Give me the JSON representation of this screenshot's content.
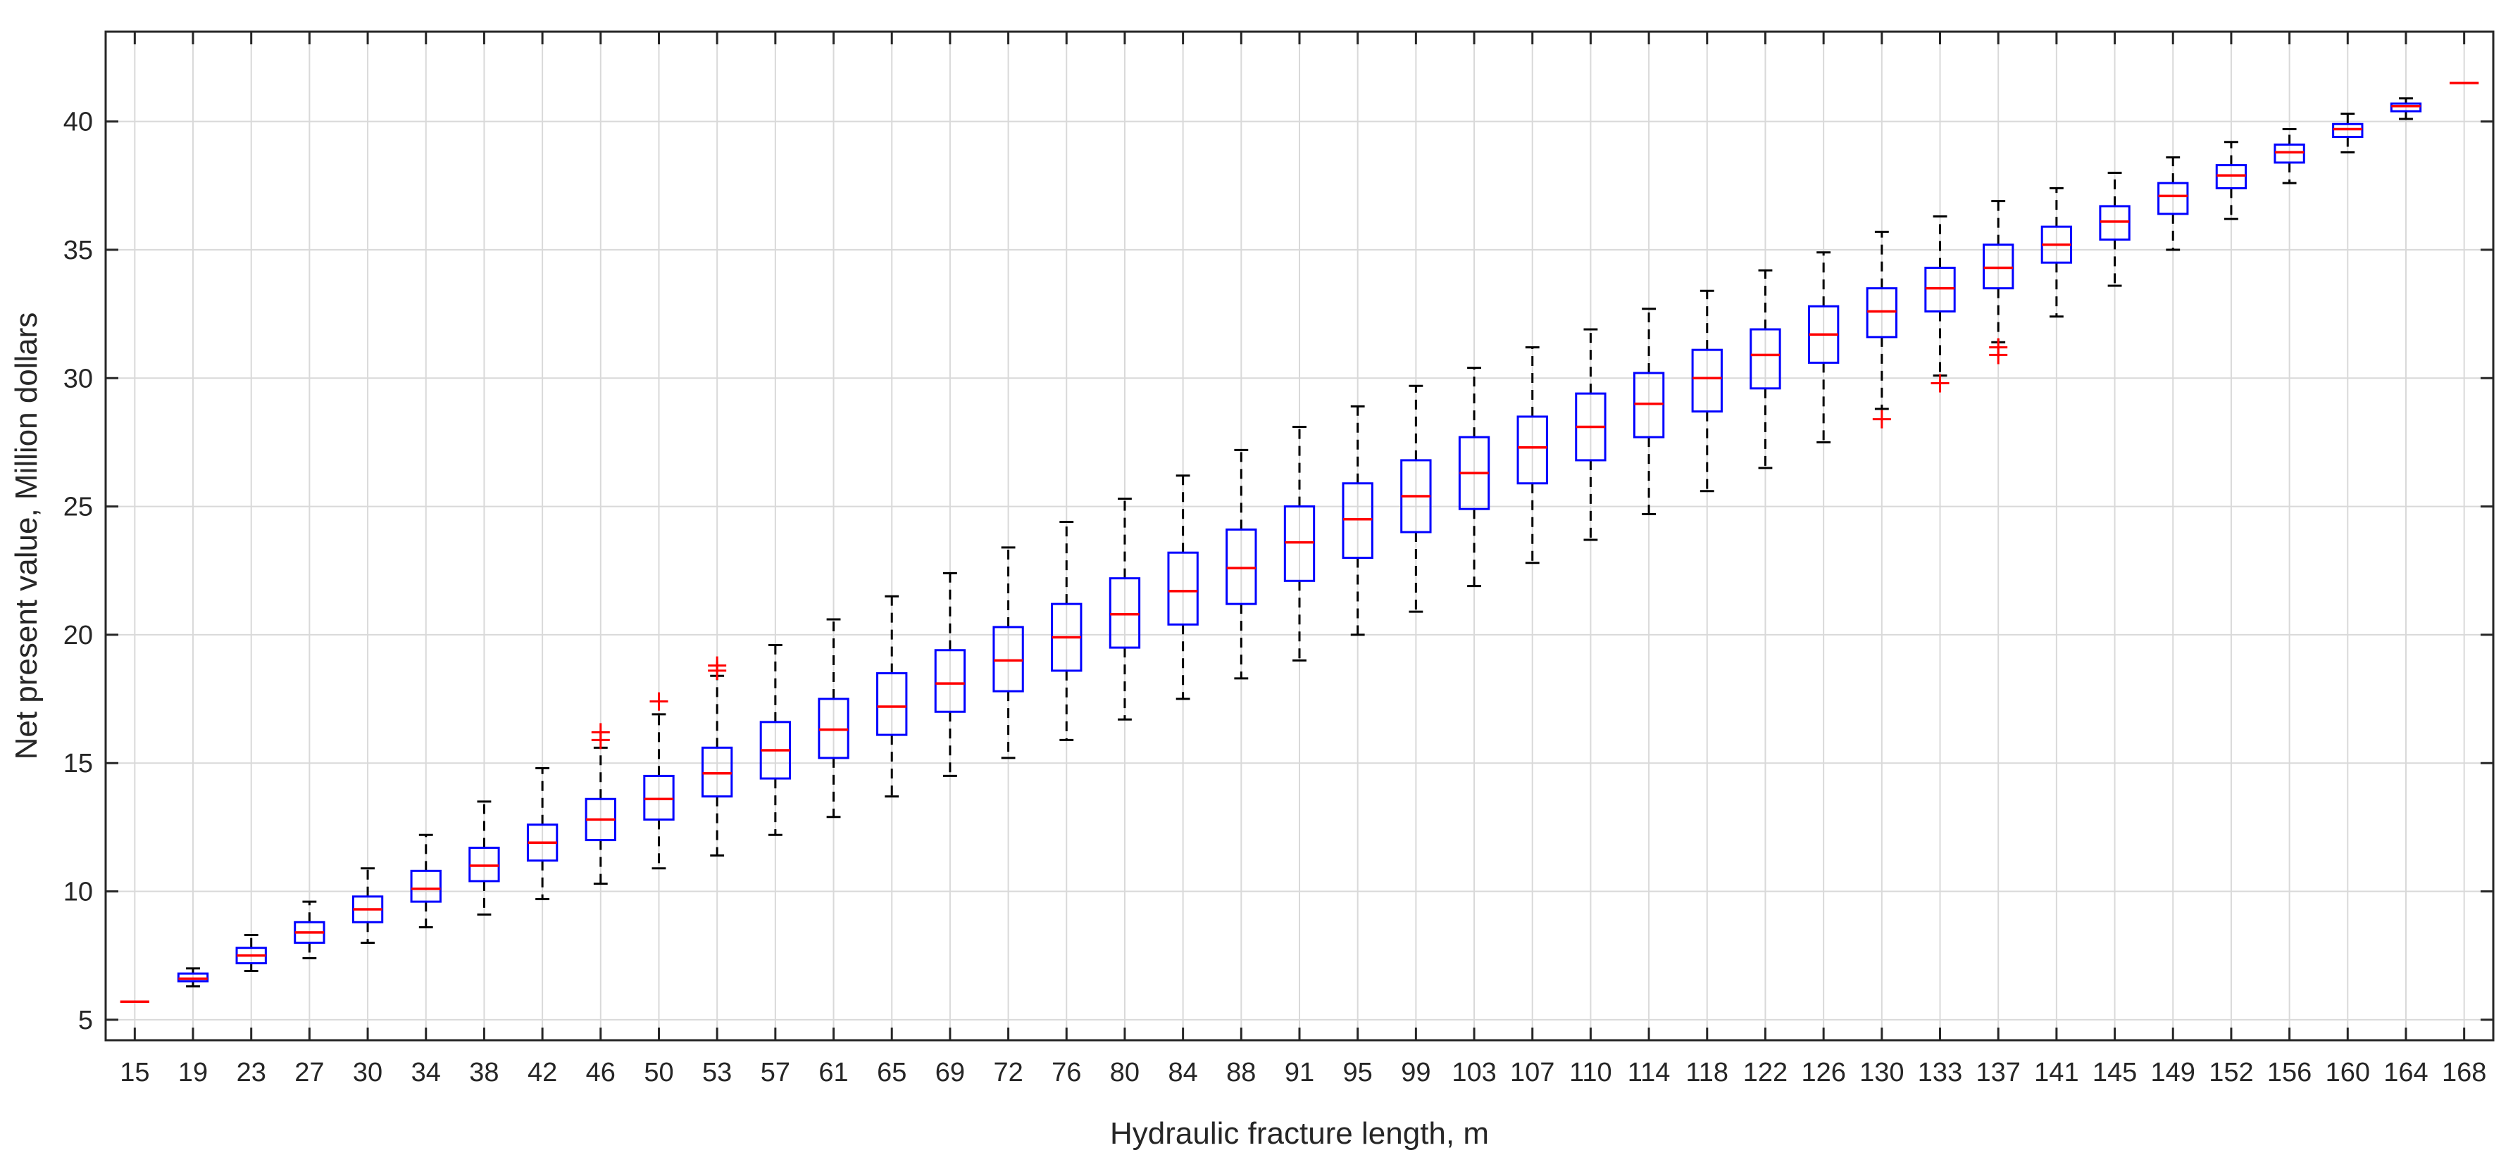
{
  "chart_data": {
    "type": "box",
    "xlabel": "Hydraulic fracture length, m",
    "ylabel": "Net present value, Million dollars",
    "ylim": [
      4.2,
      43.5
    ],
    "yticks": [
      5,
      10,
      15,
      20,
      25,
      30,
      35,
      40
    ],
    "grid": true,
    "colors": {
      "box": "#0000ff",
      "median": "#ff0000",
      "whisker": "#000000",
      "outlier": "#ff0000",
      "grid": "#d9d9d9",
      "axis": "#262626"
    },
    "categories": [
      "15",
      "19",
      "23",
      "27",
      "30",
      "34",
      "38",
      "42",
      "46",
      "50",
      "53",
      "57",
      "61",
      "65",
      "69",
      "72",
      "76",
      "80",
      "84",
      "88",
      "91",
      "95",
      "99",
      "103",
      "107",
      "110",
      "114",
      "118",
      "122",
      "126",
      "130",
      "133",
      "137",
      "141",
      "145",
      "149",
      "152",
      "156",
      "160",
      "164",
      "168"
    ],
    "boxes": [
      {
        "min": 5.7,
        "q1": 5.7,
        "median": 5.7,
        "q3": 5.7,
        "max": 5.7,
        "outliers": []
      },
      {
        "min": 6.3,
        "q1": 6.5,
        "median": 6.6,
        "q3": 6.8,
        "max": 7.0,
        "outliers": []
      },
      {
        "min": 6.9,
        "q1": 7.2,
        "median": 7.5,
        "q3": 7.8,
        "max": 8.3,
        "outliers": []
      },
      {
        "min": 7.4,
        "q1": 8.0,
        "median": 8.4,
        "q3": 8.8,
        "max": 9.6,
        "outliers": []
      },
      {
        "min": 8.0,
        "q1": 8.8,
        "median": 9.3,
        "q3": 9.8,
        "max": 10.9,
        "outliers": []
      },
      {
        "min": 8.6,
        "q1": 9.6,
        "median": 10.1,
        "q3": 10.8,
        "max": 12.2,
        "outliers": []
      },
      {
        "min": 9.1,
        "q1": 10.4,
        "median": 11.0,
        "q3": 11.7,
        "max": 13.5,
        "outliers": []
      },
      {
        "min": 9.7,
        "q1": 11.2,
        "median": 11.9,
        "q3": 12.6,
        "max": 14.8,
        "outliers": []
      },
      {
        "min": 10.3,
        "q1": 12.0,
        "median": 12.8,
        "q3": 13.6,
        "max": 15.6,
        "outliers": [
          15.9,
          16.2
        ]
      },
      {
        "min": 10.9,
        "q1": 12.8,
        "median": 13.6,
        "q3": 14.5,
        "max": 16.9,
        "outliers": [
          17.4
        ]
      },
      {
        "min": 11.4,
        "q1": 13.7,
        "median": 14.6,
        "q3": 15.6,
        "max": 18.4,
        "outliers": [
          18.6,
          18.8
        ]
      },
      {
        "min": 12.2,
        "q1": 14.4,
        "median": 15.5,
        "q3": 16.6,
        "max": 19.6,
        "outliers": []
      },
      {
        "min": 12.9,
        "q1": 15.2,
        "median": 16.3,
        "q3": 17.5,
        "max": 20.6,
        "outliers": []
      },
      {
        "min": 13.7,
        "q1": 16.1,
        "median": 17.2,
        "q3": 18.5,
        "max": 21.5,
        "outliers": []
      },
      {
        "min": 14.5,
        "q1": 17.0,
        "median": 18.1,
        "q3": 19.4,
        "max": 22.4,
        "outliers": []
      },
      {
        "min": 15.2,
        "q1": 17.8,
        "median": 19.0,
        "q3": 20.3,
        "max": 23.4,
        "outliers": []
      },
      {
        "min": 15.9,
        "q1": 18.6,
        "median": 19.9,
        "q3": 21.2,
        "max": 24.4,
        "outliers": []
      },
      {
        "min": 16.7,
        "q1": 19.5,
        "median": 20.8,
        "q3": 22.2,
        "max": 25.3,
        "outliers": []
      },
      {
        "min": 17.5,
        "q1": 20.4,
        "median": 21.7,
        "q3": 23.2,
        "max": 26.2,
        "outliers": []
      },
      {
        "min": 18.3,
        "q1": 21.2,
        "median": 22.6,
        "q3": 24.1,
        "max": 27.2,
        "outliers": []
      },
      {
        "min": 19.0,
        "q1": 22.1,
        "median": 23.6,
        "q3": 25.0,
        "max": 28.1,
        "outliers": []
      },
      {
        "min": 20.0,
        "q1": 23.0,
        "median": 24.5,
        "q3": 25.9,
        "max": 28.9,
        "outliers": []
      },
      {
        "min": 20.9,
        "q1": 24.0,
        "median": 25.4,
        "q3": 26.8,
        "max": 29.7,
        "outliers": []
      },
      {
        "min": 21.9,
        "q1": 24.9,
        "median": 26.3,
        "q3": 27.7,
        "max": 30.4,
        "outliers": []
      },
      {
        "min": 22.8,
        "q1": 25.9,
        "median": 27.3,
        "q3": 28.5,
        "max": 31.2,
        "outliers": []
      },
      {
        "min": 23.7,
        "q1": 26.8,
        "median": 28.1,
        "q3": 29.4,
        "max": 31.9,
        "outliers": []
      },
      {
        "min": 24.7,
        "q1": 27.7,
        "median": 29.0,
        "q3": 30.2,
        "max": 32.7,
        "outliers": []
      },
      {
        "min": 25.6,
        "q1": 28.7,
        "median": 30.0,
        "q3": 31.1,
        "max": 33.4,
        "outliers": []
      },
      {
        "min": 26.5,
        "q1": 29.6,
        "median": 30.9,
        "q3": 31.9,
        "max": 34.2,
        "outliers": []
      },
      {
        "min": 27.5,
        "q1": 30.6,
        "median": 31.7,
        "q3": 32.8,
        "max": 34.9,
        "outliers": []
      },
      {
        "min": 28.8,
        "q1": 31.6,
        "median": 32.6,
        "q3": 33.5,
        "max": 35.7,
        "outliers": [
          28.4
        ]
      },
      {
        "min": 30.1,
        "q1": 32.6,
        "median": 33.5,
        "q3": 34.3,
        "max": 36.3,
        "outliers": [
          29.8
        ]
      },
      {
        "min": 31.4,
        "q1": 33.5,
        "median": 34.3,
        "q3": 35.2,
        "max": 36.9,
        "outliers": [
          30.9,
          31.2
        ]
      },
      {
        "min": 32.4,
        "q1": 34.5,
        "median": 35.2,
        "q3": 35.9,
        "max": 37.4,
        "outliers": []
      },
      {
        "min": 33.6,
        "q1": 35.4,
        "median": 36.1,
        "q3": 36.7,
        "max": 38.0,
        "outliers": []
      },
      {
        "min": 35.0,
        "q1": 36.4,
        "median": 37.1,
        "q3": 37.6,
        "max": 38.6,
        "outliers": []
      },
      {
        "min": 36.2,
        "q1": 37.4,
        "median": 37.9,
        "q3": 38.3,
        "max": 39.2,
        "outliers": []
      },
      {
        "min": 37.6,
        "q1": 38.4,
        "median": 38.8,
        "q3": 39.1,
        "max": 39.7,
        "outliers": []
      },
      {
        "min": 38.8,
        "q1": 39.4,
        "median": 39.7,
        "q3": 39.9,
        "max": 40.3,
        "outliers": []
      },
      {
        "min": 40.1,
        "q1": 40.4,
        "median": 40.6,
        "q3": 40.7,
        "max": 40.9,
        "outliers": []
      },
      {
        "min": 41.5,
        "q1": 41.5,
        "median": 41.5,
        "q3": 41.5,
        "max": 41.5,
        "outliers": []
      }
    ]
  }
}
